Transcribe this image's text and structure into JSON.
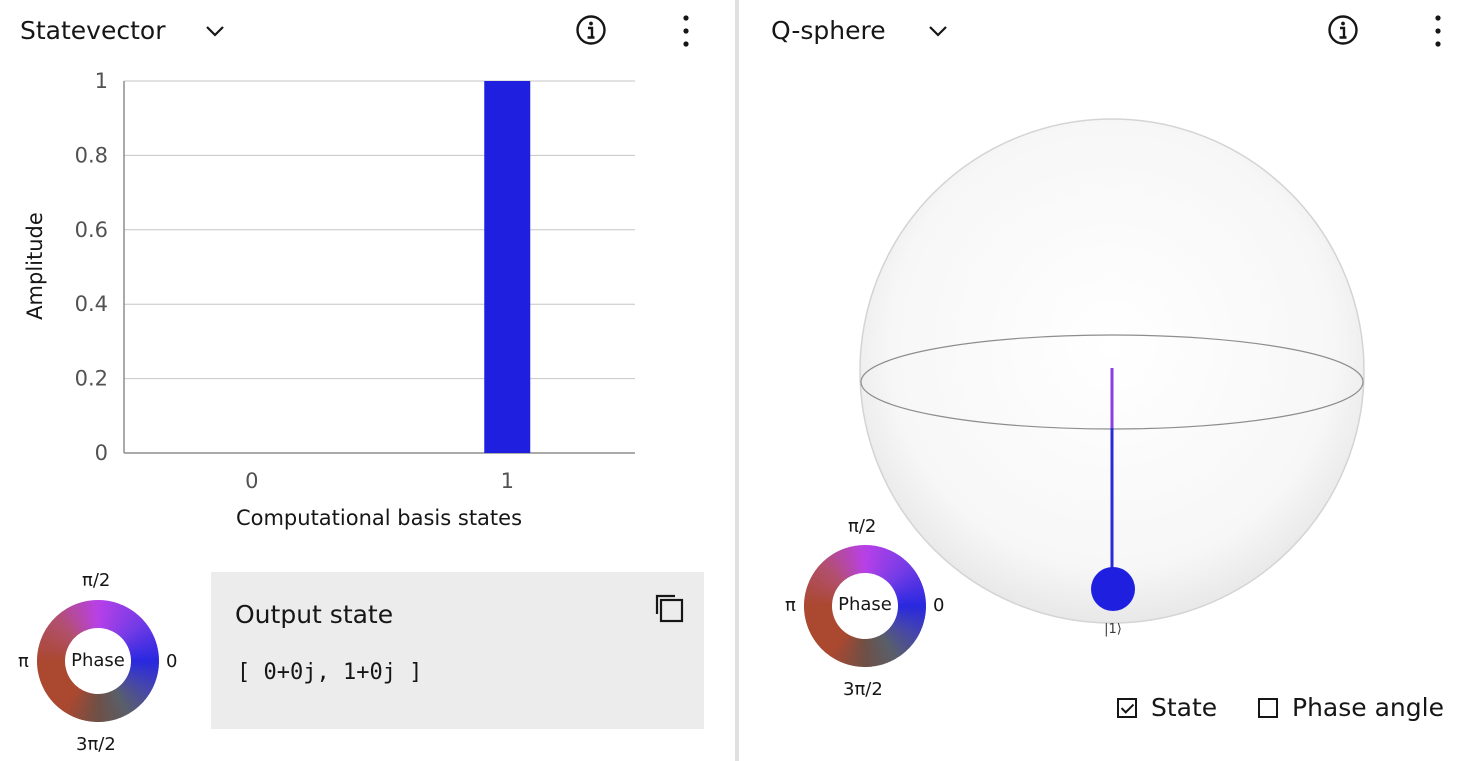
{
  "left": {
    "title": "Statevector",
    "output": {
      "title": "Output state",
      "value": "[ 0+0j, 1+0j ]"
    },
    "phase_wheel": {
      "center": "Phase",
      "top": "π/2",
      "right": "0",
      "left": "π",
      "bottom": "3π/2"
    }
  },
  "right": {
    "title": "Q-sphere",
    "state_label": "|1⟩",
    "phase_wheel": {
      "center": "Phase",
      "top": "π/2",
      "right": "0",
      "left": "π",
      "bottom": "3π/2"
    },
    "options": [
      {
        "label": "State",
        "checked": true
      },
      {
        "label": "Phase angle",
        "checked": false
      }
    ]
  },
  "icons": {
    "dropdown": "chevron-down-icon",
    "info": "info-icon",
    "menu": "overflow-menu-icon",
    "copy": "copy-icon"
  },
  "colors": {
    "bar": "#1f1fe0",
    "grid": "#c6c6c6",
    "panel": "#ececec"
  },
  "chart_data": {
    "type": "bar",
    "categories": [
      "0",
      "1"
    ],
    "values": [
      0,
      1
    ],
    "xlabel": "Computational basis states",
    "ylabel": "Amplitude",
    "ylim": [
      0,
      1
    ],
    "yticks": [
      "0",
      "0.2",
      "0.4",
      "0.6",
      "0.8",
      "1"
    ],
    "grid": true
  }
}
